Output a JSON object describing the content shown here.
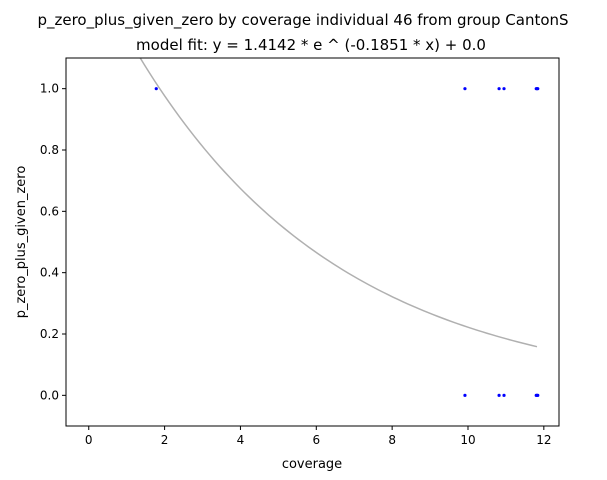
{
  "chart_data": {
    "type": "scatter",
    "title": "p_zero_plus_given_zero by coverage individual 46 from group CantonS",
    "subtitle": "model fit: y = 1.4142 * e ^ (-0.1851 * x) + 0.0",
    "xlabel": "coverage",
    "ylabel": "p_zero_plus_given_zero",
    "xlim": [
      -0.6,
      12.4
    ],
    "ylim": [
      -0.1,
      1.1
    ],
    "x_ticks": [
      0,
      2,
      4,
      6,
      8,
      10,
      12
    ],
    "x_tick_labels": [
      "0",
      "2",
      "4",
      "6",
      "8",
      "10",
      "12"
    ],
    "y_ticks": [
      0.0,
      0.2,
      0.4,
      0.6,
      0.8,
      1.0
    ],
    "y_tick_labels": [
      "0.0",
      "0.2",
      "0.4",
      "0.6",
      "0.8",
      "1.0"
    ],
    "grid": false,
    "series": [
      {
        "kind": "points",
        "color": "#0000ff",
        "x": [
          1.78,
          9.92,
          10.82,
          10.95,
          11.8,
          11.82,
          11.84,
          9.92,
          10.82,
          10.95,
          11.8,
          11.82,
          11.84
        ],
        "y": [
          1.0,
          1.0,
          1.0,
          1.0,
          1.0,
          1.0,
          1.0,
          0.0,
          0.0,
          0.0,
          0.0,
          0.0,
          0.0
        ]
      },
      {
        "kind": "fit-curve",
        "color": "#b0b0b0",
        "model": {
          "a": 1.4142,
          "b": -0.1851,
          "c": 0.0
        },
        "x_range": [
          1.35,
          11.82
        ]
      }
    ]
  }
}
